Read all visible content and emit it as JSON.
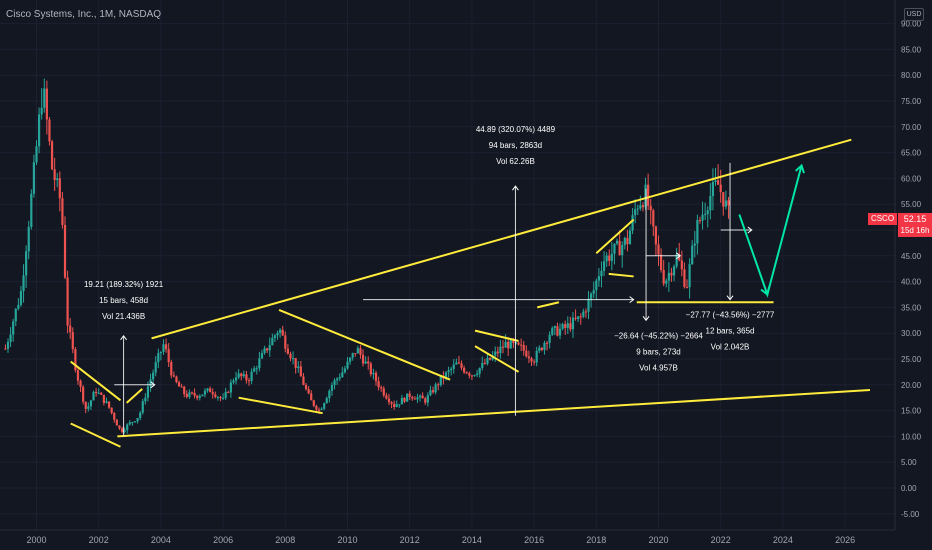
{
  "header": {
    "title": "Cisco Systems, Inc., 1M, NASDAQ",
    "currency": "USD"
  },
  "price_label": {
    "symbol": "CSCO",
    "price": "52.15",
    "countdown": "15d 16h"
  },
  "colors": {
    "background": "#131722",
    "up": "#26a69a",
    "down": "#ef5350",
    "trendline": "#ffeb3b",
    "measure": "#ffffff",
    "projection": "#00e6a8",
    "price_label": "#f23645"
  },
  "chart_data": {
    "type": "candlestick",
    "title": "Cisco Systems, Inc., 1M, NASDAQ",
    "ylim": [
      -5,
      90
    ],
    "xlim": [
      1999.0,
      2027.2
    ],
    "y_ticks": [
      "-5.00",
      "0.00",
      "5.00",
      "10.00",
      "15.00",
      "20.00",
      "25.00",
      "30.00",
      "35.00",
      "40.00",
      "45.00",
      "50.00",
      "55.00",
      "60.00",
      "65.00",
      "70.00",
      "75.00",
      "80.00",
      "85.00",
      "90.00"
    ],
    "x_ticks": [
      "2000",
      "2002",
      "2004",
      "2006",
      "2008",
      "2010",
      "2012",
      "2014",
      "2016",
      "2018",
      "2020",
      "2022",
      "2024",
      "2026"
    ],
    "grid": true,
    "price_path": [
      [
        1999.0,
        27
      ],
      [
        1999.5,
        38
      ],
      [
        1999.9,
        60
      ],
      [
        2000.2,
        78
      ],
      [
        2000.5,
        62
      ],
      [
        2000.8,
        55
      ],
      [
        2001.0,
        32
      ],
      [
        2001.3,
        22
      ],
      [
        2001.6,
        15
      ],
      [
        2001.9,
        19
      ],
      [
        2002.3,
        16
      ],
      [
        2002.7,
        11
      ],
      [
        2002.9,
        12
      ],
      [
        2003.3,
        14
      ],
      [
        2003.6,
        20
      ],
      [
        2003.9,
        25
      ],
      [
        2004.1,
        28
      ],
      [
        2004.4,
        21
      ],
      [
        2004.8,
        18
      ],
      [
        2005.2,
        18
      ],
      [
        2005.6,
        19
      ],
      [
        2006.0,
        17
      ],
      [
        2006.4,
        22
      ],
      [
        2006.8,
        21
      ],
      [
        2007.3,
        26
      ],
      [
        2007.8,
        31
      ],
      [
        2008.0,
        28
      ],
      [
        2008.4,
        23
      ],
      [
        2008.8,
        17
      ],
      [
        2009.1,
        15
      ],
      [
        2009.5,
        20
      ],
      [
        2009.9,
        23
      ],
      [
        2010.3,
        27
      ],
      [
        2010.7,
        23
      ],
      [
        2011.1,
        19
      ],
      [
        2011.5,
        16
      ],
      [
        2012.0,
        18
      ],
      [
        2012.5,
        17
      ],
      [
        2013.0,
        21
      ],
      [
        2013.5,
        24
      ],
      [
        2014.0,
        22
      ],
      [
        2014.6,
        25
      ],
      [
        2015.1,
        28
      ],
      [
        2015.6,
        27
      ],
      [
        2016.0,
        25
      ],
      [
        2016.5,
        30
      ],
      [
        2017.0,
        31
      ],
      [
        2017.5,
        33
      ],
      [
        2017.9,
        38
      ],
      [
        2018.2,
        44
      ],
      [
        2018.6,
        46
      ],
      [
        2019.0,
        48
      ],
      [
        2019.3,
        55
      ],
      [
        2019.6,
        57
      ],
      [
        2019.9,
        47
      ],
      [
        2020.2,
        40
      ],
      [
        2020.6,
        45
      ],
      [
        2020.9,
        39
      ],
      [
        2021.2,
        50
      ],
      [
        2021.6,
        56
      ],
      [
        2021.9,
        59
      ],
      [
        2022.1,
        56
      ],
      [
        2022.3,
        52
      ]
    ],
    "trendlines": [
      {
        "p1": [
          2003.7,
          29.0
        ],
        "p2": [
          2026.2,
          67.5
        ]
      },
      {
        "p1": [
          2002.6,
          10.0
        ],
        "p2": [
          2026.8,
          19.0
        ]
      },
      {
        "p1": [
          2002.9,
          16.5
        ],
        "p2": [
          2003.4,
          19.2
        ]
      },
      {
        "p1": [
          2001.1,
          24.5
        ],
        "p2": [
          2002.7,
          17.0
        ]
      },
      {
        "p1": [
          2001.1,
          12.5
        ],
        "p2": [
          2002.7,
          8.0
        ]
      },
      {
        "p1": [
          2007.8,
          34.5
        ],
        "p2": [
          2013.3,
          21.0
        ]
      },
      {
        "p1": [
          2006.5,
          17.5
        ],
        "p2": [
          2009.2,
          14.5
        ]
      },
      {
        "p1": [
          2014.1,
          30.5
        ],
        "p2": [
          2015.5,
          28.5
        ]
      },
      {
        "p1": [
          2014.1,
          27.5
        ],
        "p2": [
          2015.5,
          22.5
        ]
      },
      {
        "p1": [
          2016.1,
          35.0
        ],
        "p2": [
          2016.8,
          36.0
        ]
      },
      {
        "p1": [
          2018.0,
          45.5
        ],
        "p2": [
          2019.2,
          52.0
        ]
      },
      {
        "p1": [
          2018.4,
          41.5
        ],
        "p2": [
          2019.2,
          41.0
        ]
      },
      {
        "p1": [
          2019.3,
          36.0
        ],
        "p2": [
          2023.7,
          36.0
        ]
      }
    ],
    "measurements": [
      {
        "lines": [
          "19.21 (189.32%) 1921",
          "15 bars, 458d",
          "Vol 21.436B"
        ],
        "from": [
          2002.8,
          10.0
        ],
        "to": [
          2002.8,
          29.5
        ],
        "h_from": 2002.5,
        "h_to": 2003.8,
        "h_y": 20.0,
        "text_at": [
          2002.8,
          39.0
        ],
        "text_anchor": "middle"
      },
      {
        "lines": [
          "44.89 (320.07%) 4489",
          "94 bars, 2863d",
          "Vol 62.26B"
        ],
        "from": [
          2015.4,
          14.0
        ],
        "to": [
          2015.4,
          58.5
        ],
        "h_from": 2010.5,
        "h_to": 2019.2,
        "h_y": 36.5,
        "text_at": [
          2015.4,
          69.0
        ],
        "text_anchor": "middle"
      },
      {
        "lines": [
          "−26.64 (−45.22%) −2664",
          "9 bars, 273d",
          "Vol 4.957B"
        ],
        "from": [
          2019.6,
          58.0
        ],
        "to": [
          2019.6,
          32.5
        ],
        "h_from": 2019.6,
        "h_to": 2020.7,
        "h_y": 45.0,
        "text_at": [
          2020.0,
          29.0
        ],
        "text_anchor": "middle"
      },
      {
        "lines": [
          "−27.77 (−43.56%) −2777",
          "12 bars, 365d",
          "Vol 2.042B"
        ],
        "from": [
          2022.3,
          63.0
        ],
        "to": [
          2022.3,
          36.5
        ],
        "h_from": 2022.0,
        "h_to": 2023.0,
        "h_y": 50.0,
        "text_at": [
          2022.3,
          33.0
        ],
        "text_anchor": "middle"
      }
    ],
    "projection": [
      [
        2022.6,
        53.0
      ],
      [
        2023.5,
        37.5
      ],
      [
        2024.6,
        62.5
      ]
    ]
  }
}
